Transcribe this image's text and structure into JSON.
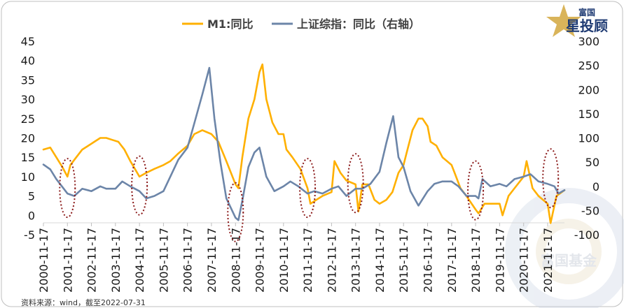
{
  "chart_data": {
    "type": "line",
    "series": [
      {
        "name": "M1:同比",
        "axis": "left",
        "color": "#FFB000",
        "points": [
          [
            "2000-11-17",
            17
          ],
          [
            "2001-03-01",
            17.5
          ],
          [
            "2001-06-01",
            15
          ],
          [
            "2001-09-01",
            12.5
          ],
          [
            "2001-11-17",
            10
          ],
          [
            "2002-01-01",
            13
          ],
          [
            "2002-04-01",
            15
          ],
          [
            "2002-07-01",
            17
          ],
          [
            "2002-10-01",
            18
          ],
          [
            "2003-01-01",
            19
          ],
          [
            "2003-04-01",
            20
          ],
          [
            "2003-07-01",
            20
          ],
          [
            "2003-10-01",
            19.5
          ],
          [
            "2004-01-01",
            19
          ],
          [
            "2004-04-01",
            17
          ],
          [
            "2004-07-01",
            14
          ],
          [
            "2004-11-17",
            10
          ],
          [
            "2005-03-01",
            11
          ],
          [
            "2005-07-01",
            12
          ],
          [
            "2005-11-17",
            13
          ],
          [
            "2006-03-01",
            14
          ],
          [
            "2006-07-01",
            16
          ],
          [
            "2006-11-17",
            18
          ],
          [
            "2007-03-01",
            21
          ],
          [
            "2007-07-01",
            22
          ],
          [
            "2007-11-17",
            21
          ],
          [
            "2008-03-01",
            19
          ],
          [
            "2008-07-01",
            14
          ],
          [
            "2008-11-17",
            8
          ],
          [
            "2008-12-31",
            7
          ],
          [
            "2009-03-01",
            15
          ],
          [
            "2009-06-01",
            25
          ],
          [
            "2009-09-01",
            30
          ],
          [
            "2009-11-17",
            37
          ],
          [
            "2009-12-31",
            39
          ],
          [
            "2010-03-01",
            30
          ],
          [
            "2010-06-01",
            24
          ],
          [
            "2010-09-01",
            21
          ],
          [
            "2010-11-17",
            21
          ],
          [
            "2011-01-01",
            17
          ],
          [
            "2011-04-01",
            15
          ],
          [
            "2011-08-01",
            12
          ],
          [
            "2011-11-17",
            7
          ],
          [
            "2012-01-01",
            3
          ],
          [
            "2012-04-01",
            4
          ],
          [
            "2012-07-01",
            5
          ],
          [
            "2012-11-17",
            6
          ],
          [
            "2013-01-01",
            14
          ],
          [
            "2013-04-01",
            11
          ],
          [
            "2013-07-01",
            9
          ],
          [
            "2013-11-17",
            8
          ],
          [
            "2013-12-31",
            1
          ],
          [
            "2014-03-01",
            8
          ],
          [
            "2014-06-01",
            8
          ],
          [
            "2014-09-01",
            4
          ],
          [
            "2014-11-17",
            3
          ],
          [
            "2015-03-01",
            4
          ],
          [
            "2015-06-01",
            6
          ],
          [
            "2015-09-01",
            11
          ],
          [
            "2015-11-17",
            13
          ],
          [
            "2016-01-01",
            16
          ],
          [
            "2016-04-01",
            22
          ],
          [
            "2016-07-01",
            25
          ],
          [
            "2016-09-01",
            25
          ],
          [
            "2016-11-17",
            23
          ],
          [
            "2017-01-01",
            19
          ],
          [
            "2017-04-01",
            18
          ],
          [
            "2017-07-01",
            15
          ],
          [
            "2017-11-17",
            13
          ],
          [
            "2018-01-01",
            11
          ],
          [
            "2018-04-01",
            7
          ],
          [
            "2018-07-01",
            5
          ],
          [
            "2018-11-17",
            1.5
          ],
          [
            "2019-01-01",
            0.5
          ],
          [
            "2019-04-01",
            3
          ],
          [
            "2019-07-01",
            3
          ],
          [
            "2019-11-17",
            3
          ],
          [
            "2020-01-01",
            0
          ],
          [
            "2020-04-01",
            5
          ],
          [
            "2020-07-01",
            7
          ],
          [
            "2020-11-17",
            10
          ],
          [
            "2021-01-01",
            14
          ],
          [
            "2021-04-01",
            7
          ],
          [
            "2021-07-01",
            5
          ],
          [
            "2021-11-17",
            3
          ],
          [
            "2022-01-01",
            -2
          ],
          [
            "2022-04-01",
            5
          ],
          [
            "2022-07-31",
            6.5
          ]
        ]
      },
      {
        "name": "上证综指：同比（右轴）",
        "axis": "right",
        "color": "#6C85A8",
        "points": [
          [
            "2000-11-17",
            45
          ],
          [
            "2001-03-01",
            35
          ],
          [
            "2001-06-01",
            15
          ],
          [
            "2001-11-17",
            -15
          ],
          [
            "2002-03-01",
            -20
          ],
          [
            "2002-07-01",
            -5
          ],
          [
            "2002-11-17",
            -10
          ],
          [
            "2003-04-01",
            0
          ],
          [
            "2003-07-01",
            -5
          ],
          [
            "2003-11-17",
            -5
          ],
          [
            "2004-03-01",
            10
          ],
          [
            "2004-07-01",
            0
          ],
          [
            "2004-11-17",
            -10
          ],
          [
            "2005-03-01",
            -25
          ],
          [
            "2005-07-01",
            -20
          ],
          [
            "2005-11-17",
            -10
          ],
          [
            "2006-03-01",
            20
          ],
          [
            "2006-07-01",
            55
          ],
          [
            "2006-11-17",
            80
          ],
          [
            "2007-03-01",
            130
          ],
          [
            "2007-07-01",
            190
          ],
          [
            "2007-10-16",
            245
          ],
          [
            "2008-01-01",
            140
          ],
          [
            "2008-04-01",
            50
          ],
          [
            "2008-07-01",
            -25
          ],
          [
            "2008-11-17",
            -65
          ],
          [
            "2008-12-31",
            -70
          ],
          [
            "2009-03-01",
            -30
          ],
          [
            "2009-06-01",
            40
          ],
          [
            "2009-09-01",
            70
          ],
          [
            "2009-11-17",
            80
          ],
          [
            "2010-03-01",
            20
          ],
          [
            "2010-07-01",
            -10
          ],
          [
            "2010-11-17",
            0
          ],
          [
            "2011-03-01",
            10
          ],
          [
            "2011-07-01",
            0
          ],
          [
            "2011-11-17",
            -15
          ],
          [
            "2012-03-01",
            -10
          ],
          [
            "2012-07-01",
            -15
          ],
          [
            "2012-11-17",
            -5
          ],
          [
            "2013-03-01",
            0
          ],
          [
            "2013-07-01",
            -20
          ],
          [
            "2013-11-17",
            -5
          ],
          [
            "2014-03-01",
            -5
          ],
          [
            "2014-07-01",
            5
          ],
          [
            "2014-11-17",
            30
          ],
          [
            "2015-03-01",
            90
          ],
          [
            "2015-06-12",
            145
          ],
          [
            "2015-09-01",
            60
          ],
          [
            "2015-11-17",
            40
          ],
          [
            "2016-03-01",
            -10
          ],
          [
            "2016-07-01",
            -40
          ],
          [
            "2016-11-17",
            -10
          ],
          [
            "2017-03-01",
            5
          ],
          [
            "2017-07-01",
            10
          ],
          [
            "2017-11-17",
            10
          ],
          [
            "2018-03-01",
            0
          ],
          [
            "2018-07-01",
            -20
          ],
          [
            "2018-11-17",
            -20
          ],
          [
            "2018-12-31",
            -25
          ],
          [
            "2019-03-01",
            15
          ],
          [
            "2019-07-01",
            0
          ],
          [
            "2019-11-17",
            5
          ],
          [
            "2020-03-01",
            0
          ],
          [
            "2020-07-01",
            15
          ],
          [
            "2020-11-17",
            20
          ],
          [
            "2021-03-01",
            25
          ],
          [
            "2021-07-01",
            10
          ],
          [
            "2021-11-17",
            5
          ],
          [
            "2022-03-01",
            0
          ],
          [
            "2022-05-01",
            -15
          ],
          [
            "2022-07-31",
            -8
          ]
        ]
      }
    ],
    "left_axis": {
      "min": -5,
      "max": 45,
      "ticks": [
        "45",
        "40",
        "35",
        "30",
        "25",
        "20",
        "15",
        "10",
        "5",
        "0",
        "-5"
      ]
    },
    "right_axis": {
      "min": -100,
      "max": 300,
      "ticks": [
        "300",
        "250",
        "200",
        "150",
        "100",
        "50",
        "0",
        "-50",
        "-100"
      ]
    },
    "x_tick_labels": [
      "2000-11-17",
      "2001-11-17",
      "2002-11-17",
      "2003-11-17",
      "2004-11-17",
      "2005-11-17",
      "2006-11-17",
      "2007-11-17",
      "2008-11-17",
      "2009-11-17",
      "2010-11-17",
      "2011-11-17",
      "2012-11-17",
      "2013-11-17",
      "2014-11-17",
      "2015-11-17",
      "2016-11-17",
      "2017-11-17",
      "2018-11-17",
      "2019-11-17",
      "2020-11-17",
      "2021-11-17"
    ],
    "x_range": [
      "2000-11-17",
      "2022-07-31"
    ],
    "highlight_dates": [
      "2001-11-17",
      "2004-11-17",
      "2008-11-17",
      "2011-11-17",
      "2013-11-17",
      "2018-11-17",
      "2022-01-01"
    ],
    "legend_position": "top-center",
    "grid": false
  },
  "source_note": "资料来源：wind，截至2022-07-31",
  "logo": {
    "line1": "富国",
    "line2": "星投顾",
    "watermark": "富国基金"
  },
  "colors": {
    "m1": "#FFB000",
    "index": "#6C85A8",
    "ellipse": "#8B1A1A"
  }
}
